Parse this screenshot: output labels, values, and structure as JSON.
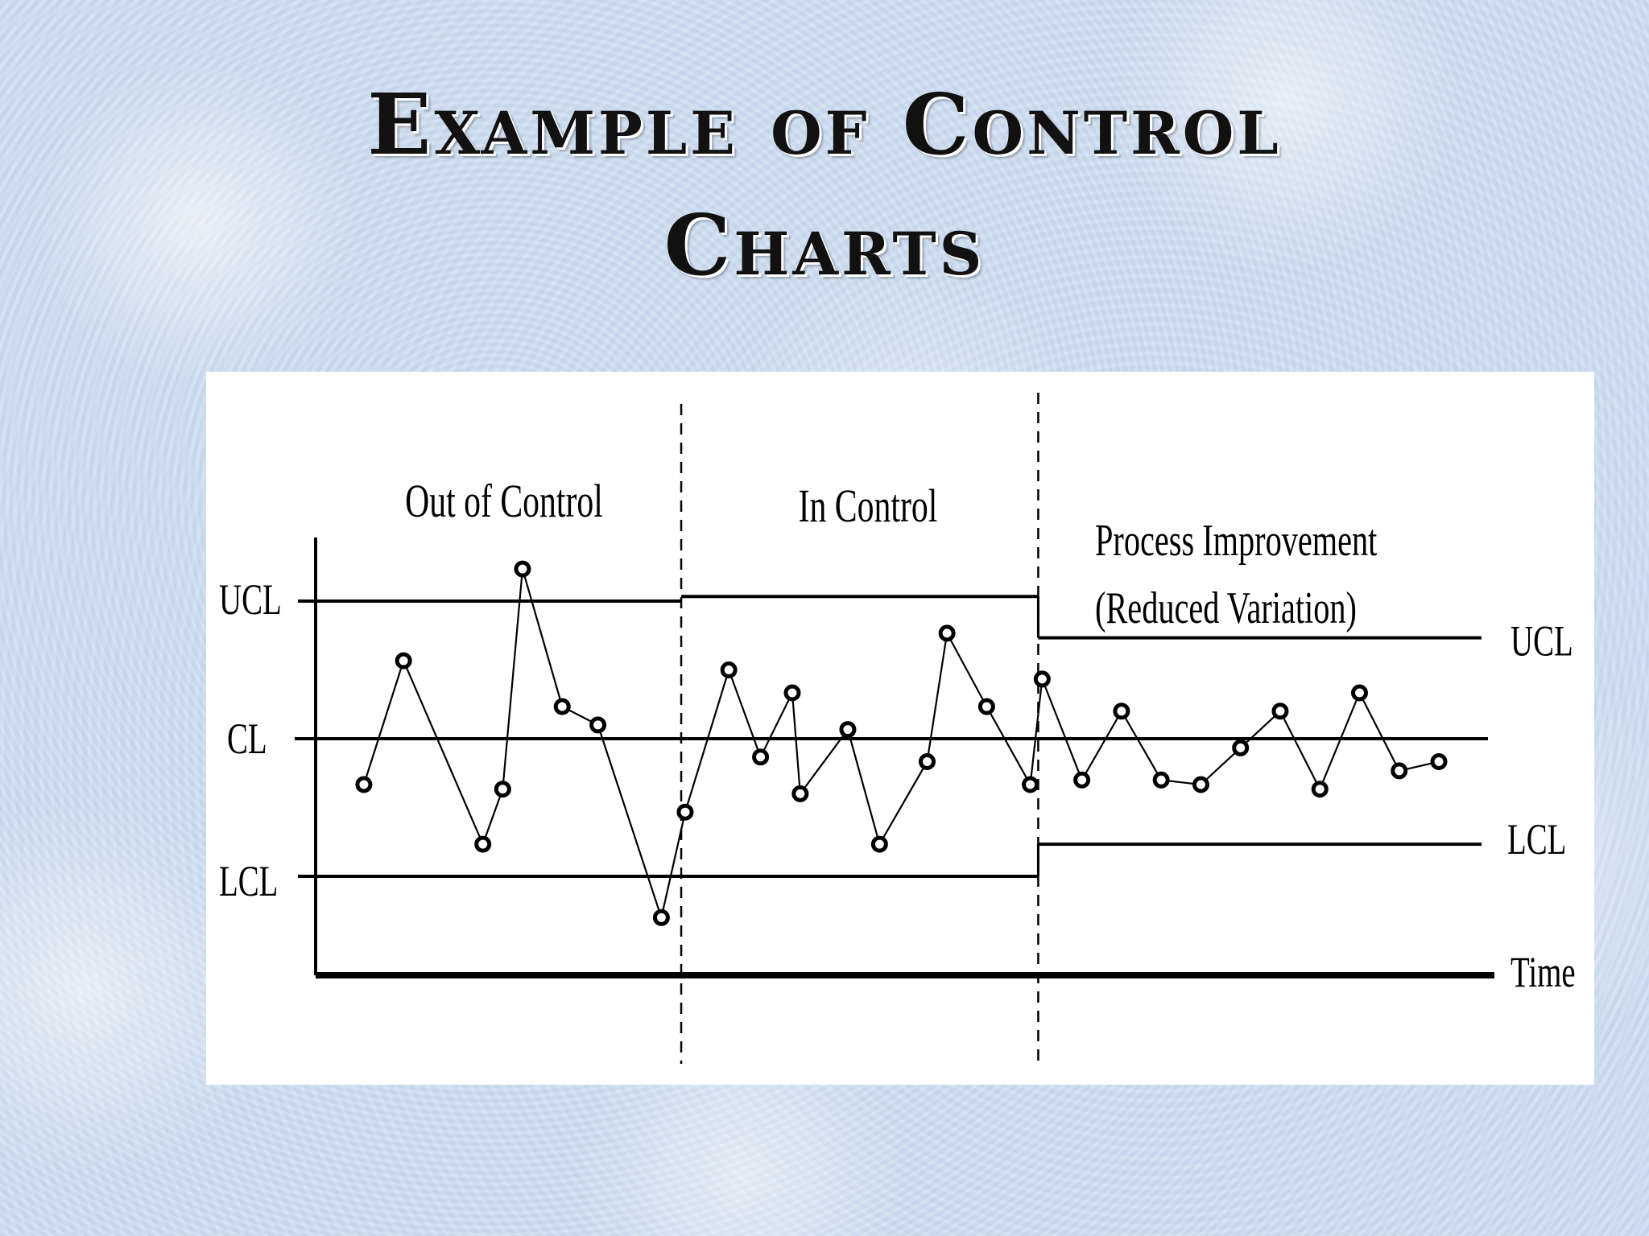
{
  "slide": {
    "title_line1": "Example of Control",
    "title_line2": "Charts"
  },
  "colors": {
    "background": "#cddcee",
    "panel": "#ffffff",
    "ink": "#000000"
  },
  "chart_data": {
    "type": "line",
    "title": "",
    "xlabel": "Time",
    "ylabel": "",
    "grid": false,
    "legend": "none",
    "ylim": [
      -4.5,
      3.5
    ],
    "xlim": [
      0,
      30
    ],
    "phases": [
      {
        "label": "Out of Control",
        "start": 0,
        "end": 9.5,
        "ucl": 3,
        "cl": 0,
        "lcl": -3
      },
      {
        "label": "In Control",
        "start": 9.5,
        "end": 18.5,
        "ucl": 3.1,
        "cl": 0,
        "lcl": -3
      },
      {
        "label_lines": [
          "Process Improvement",
          "(Reduced Variation)"
        ],
        "start": 18.5,
        "end": 30,
        "ucl": 2.2,
        "cl": 0,
        "lcl": -2.3
      }
    ],
    "limit_labels": {
      "left": {
        "ucl": "UCL",
        "cl": "CL",
        "lcl": "LCL"
      },
      "right": {
        "ucl": "UCL",
        "lcl": "LCL"
      }
    },
    "series": [
      {
        "x": [
          1.5,
          2.5,
          4.5,
          5.0,
          5.5,
          6.5,
          7.4,
          9.0,
          9.6,
          10.7,
          11.5,
          12.3,
          12.5,
          13.7,
          14.5,
          15.7,
          16.2,
          17.2,
          18.3,
          18.6,
          19.6,
          20.6,
          21.6,
          22.6,
          23.6,
          24.6,
          25.6,
          26.6,
          27.6,
          28.6
        ],
        "y": [
          -1.0,
          1.7,
          -2.3,
          -1.1,
          3.7,
          0.7,
          0.3,
          -3.9,
          -1.6,
          1.5,
          -0.4,
          1.0,
          -1.2,
          0.2,
          -2.3,
          -0.5,
          2.3,
          0.7,
          -1.0,
          1.3,
          -0.9,
          0.6,
          -0.9,
          -1.0,
          -0.2,
          0.6,
          -1.1,
          1.0,
          -0.7,
          -0.5
        ]
      }
    ]
  }
}
